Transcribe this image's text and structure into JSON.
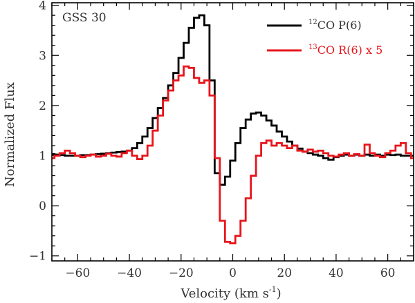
{
  "chart_data": {
    "type": "line",
    "step": true,
    "xlabel": {
      "base": "Velocity (km s",
      "sup": "-1",
      "close": ")"
    },
    "ylabel": "Normalized Flux",
    "annotation": "GSS 30",
    "xlim": [
      -70,
      70
    ],
    "ylim": [
      -1.1,
      4.05
    ],
    "xticks": [
      -60,
      -40,
      -20,
      0,
      20,
      40,
      60
    ],
    "yticks": [
      -1,
      0,
      1,
      2,
      3,
      4
    ],
    "tick_labels": {
      "x": [
        "−60",
        "−40",
        "−20",
        "0",
        "20",
        "40",
        "60"
      ],
      "y": [
        "−1",
        "0",
        "1",
        "2",
        "3",
        "4"
      ]
    },
    "legend_position": "top-right",
    "series": [
      {
        "legend": {
          "sup": "12",
          "text": "CO P(6)"
        },
        "color": "#000000",
        "x": [
          -70,
          -68,
          -66,
          -64,
          -62,
          -60,
          -58,
          -56,
          -54,
          -52,
          -50,
          -48,
          -46,
          -44,
          -42,
          -40,
          -38,
          -36,
          -34,
          -32,
          -30,
          -28,
          -26,
          -24,
          -22,
          -20,
          -18,
          -16,
          -14,
          -12,
          -10,
          -8,
          -6,
          -4,
          -2,
          0,
          2,
          4,
          6,
          8,
          10,
          12,
          14,
          16,
          18,
          20,
          22,
          24,
          26,
          28,
          30,
          32,
          34,
          36,
          38,
          40,
          42,
          44,
          46,
          48,
          50,
          52,
          54,
          56,
          58,
          60,
          62,
          64,
          66,
          68,
          70
        ],
        "values": [
          1.03,
          1.02,
          1.01,
          1.0,
          1.0,
          1.0,
          1.01,
          1.01,
          1.02,
          1.03,
          1.04,
          1.05,
          1.06,
          1.07,
          1.08,
          1.1,
          1.15,
          1.25,
          1.38,
          1.55,
          1.75,
          1.95,
          2.15,
          2.4,
          2.65,
          2.95,
          3.25,
          3.55,
          3.75,
          3.8,
          3.6,
          2.5,
          0.65,
          0.42,
          0.58,
          0.9,
          1.25,
          1.55,
          1.72,
          1.84,
          1.86,
          1.8,
          1.7,
          1.6,
          1.48,
          1.38,
          1.28,
          1.2,
          1.14,
          1.08,
          1.05,
          1.02,
          1.0,
          0.95,
          0.92,
          0.97,
          1.0,
          1.02,
          1.0,
          1.02,
          1.0,
          1.02,
          1.0,
          1.02,
          1.0,
          1.02,
          1.01,
          1.02,
          1.0,
          1.0,
          1.0
        ]
      },
      {
        "legend": {
          "sup": "13",
          "text": "CO R(6) x 5"
        },
        "color": "#e8141b",
        "x": [
          -70,
          -68,
          -66,
          -64,
          -62,
          -60,
          -58,
          -56,
          -54,
          -52,
          -50,
          -48,
          -46,
          -44,
          -42,
          -40,
          -38,
          -36,
          -34,
          -32,
          -30,
          -28,
          -26,
          -24,
          -22,
          -20,
          -18,
          -16,
          -14,
          -12,
          -10,
          -8,
          -6,
          -4,
          -2,
          0,
          2,
          4,
          6,
          8,
          10,
          12,
          14,
          16,
          18,
          20,
          22,
          24,
          26,
          28,
          30,
          32,
          34,
          36,
          38,
          40,
          42,
          44,
          46,
          48,
          50,
          52,
          54,
          56,
          58,
          60,
          62,
          64,
          66,
          68,
          70
        ],
        "values": [
          0.95,
          1.0,
          1.05,
          1.1,
          1.05,
          1.0,
          0.97,
          1.0,
          1.02,
          0.98,
          1.0,
          1.04,
          1.0,
          0.98,
          1.05,
          1.1,
          1.0,
          0.93,
          1.0,
          1.2,
          1.5,
          1.8,
          2.1,
          2.3,
          2.5,
          2.6,
          2.78,
          2.75,
          2.55,
          2.45,
          2.5,
          2.2,
          0.95,
          -0.3,
          -0.72,
          -0.75,
          -0.6,
          -0.3,
          0.15,
          0.6,
          1.0,
          1.25,
          1.3,
          1.2,
          1.25,
          1.2,
          1.15,
          1.2,
          1.1,
          1.08,
          1.12,
          1.08,
          1.1,
          1.05,
          1.0,
          0.98,
          1.02,
          1.05,
          1.0,
          1.03,
          1.0,
          1.22,
          1.05,
          1.0,
          0.97,
          1.05,
          1.1,
          1.2,
          1.25,
          1.05,
          0.95
        ]
      }
    ]
  }
}
